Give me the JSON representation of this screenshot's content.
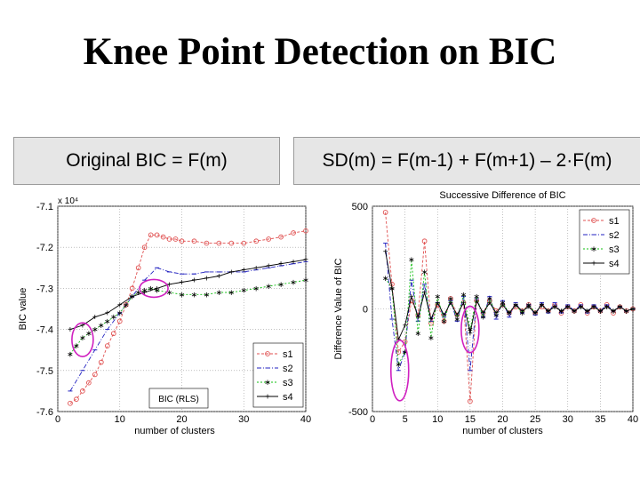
{
  "slide": {
    "title": "Knee Point Detection on BIC",
    "left_caption": "Original BIC = F(m)",
    "right_caption": "SD(m) = F(m-1) + F(m+1) – 2·F(m)"
  },
  "colors": {
    "s1": "#e05050",
    "s2": "#2020c0",
    "s3": "#10c010",
    "s4": "#000000",
    "highlight": "#d020c0"
  },
  "chart_data": [
    {
      "type": "line",
      "title": "",
      "xlabel": "number of clusters",
      "ylabel": "BIC value",
      "exponent_label": "x 10⁴",
      "xlim": [
        0,
        40
      ],
      "ylim": [
        -7.6,
        -7.1
      ],
      "xticks": [
        0,
        10,
        20,
        30,
        40
      ],
      "yticks": [
        -7.6,
        -7.5,
        -7.4,
        -7.3,
        -7.2,
        -7.1
      ],
      "legend_title": "BIC (RLS)",
      "legend": [
        "s1",
        "s2",
        "s3",
        "s4"
      ],
      "annotations": [
        "circle around s3 knee near m = 4",
        "circle around s3 knee near m = 15"
      ],
      "series": [
        {
          "name": "s1",
          "x": [
            2,
            3,
            4,
            5,
            6,
            7,
            8,
            9,
            10,
            11,
            12,
            13,
            14,
            15,
            16,
            17,
            18,
            19,
            20,
            22,
            24,
            26,
            28,
            30,
            32,
            34,
            36,
            38,
            40
          ],
          "values": [
            -7.58,
            -7.57,
            -7.55,
            -7.53,
            -7.51,
            -7.48,
            -7.44,
            -7.41,
            -7.38,
            -7.34,
            -7.3,
            -7.25,
            -7.2,
            -7.17,
            -7.17,
            -7.175,
            -7.18,
            -7.18,
            -7.185,
            -7.185,
            -7.19,
            -7.19,
            -7.19,
            -7.19,
            -7.185,
            -7.18,
            -7.175,
            -7.165,
            -7.16
          ]
        },
        {
          "name": "s2",
          "x": [
            2,
            4,
            6,
            8,
            10,
            12,
            14,
            16,
            18,
            20,
            22,
            24,
            26,
            28,
            30,
            32,
            34,
            36,
            38,
            40
          ],
          "values": [
            -7.55,
            -7.5,
            -7.45,
            -7.4,
            -7.36,
            -7.32,
            -7.28,
            -7.25,
            -7.26,
            -7.265,
            -7.265,
            -7.26,
            -7.26,
            -7.26,
            -7.26,
            -7.255,
            -7.25,
            -7.245,
            -7.24,
            -7.235
          ]
        },
        {
          "name": "s3",
          "x": [
            2,
            3,
            4,
            5,
            6,
            7,
            8,
            9,
            10,
            11,
            12,
            13,
            14,
            15,
            16,
            18,
            20,
            22,
            24,
            26,
            28,
            30,
            32,
            34,
            36,
            38,
            40
          ],
          "values": [
            -7.46,
            -7.44,
            -7.42,
            -7.41,
            -7.4,
            -7.39,
            -7.38,
            -7.37,
            -7.36,
            -7.34,
            -7.32,
            -7.31,
            -7.305,
            -7.3,
            -7.305,
            -7.31,
            -7.315,
            -7.315,
            -7.315,
            -7.31,
            -7.31,
            -7.305,
            -7.3,
            -7.295,
            -7.29,
            -7.285,
            -7.28
          ]
        },
        {
          "name": "s4",
          "x": [
            2,
            4,
            6,
            8,
            10,
            12,
            14,
            16,
            18,
            20,
            22,
            24,
            26,
            28,
            30,
            32,
            34,
            36,
            38,
            40
          ],
          "values": [
            -7.4,
            -7.39,
            -7.37,
            -7.36,
            -7.34,
            -7.32,
            -7.31,
            -7.3,
            -7.29,
            -7.285,
            -7.28,
            -7.275,
            -7.27,
            -7.26,
            -7.255,
            -7.25,
            -7.245,
            -7.24,
            -7.235,
            -7.23
          ]
        }
      ]
    },
    {
      "type": "line",
      "title": "Successive Difference of BIC",
      "xlabel": "number of clusters",
      "ylabel": "Difference Value of BIC",
      "xlim": [
        0,
        40
      ],
      "ylim": [
        -500,
        500
      ],
      "xticks": [
        0,
        5,
        10,
        15,
        20,
        25,
        30,
        35,
        40
      ],
      "yticks": [
        -500,
        0,
        500
      ],
      "legend": [
        "s1",
        "s2",
        "s3",
        "s4"
      ],
      "annotations": [
        "circle around minimum near m = 4",
        "circle around minimum near m = 15"
      ],
      "series": [
        {
          "name": "s1",
          "x": [
            2,
            3,
            4,
            5,
            6,
            7,
            8,
            9,
            10,
            11,
            12,
            13,
            14,
            15,
            16,
            17,
            18,
            19,
            20,
            21,
            22,
            23,
            24,
            25,
            26,
            27,
            28,
            29,
            30,
            31,
            32,
            33,
            34,
            35,
            36,
            37,
            38,
            39,
            40
          ],
          "values": [
            470,
            120,
            -210,
            -160,
            40,
            -30,
            330,
            -70,
            20,
            -60,
            50,
            -30,
            30,
            -450,
            40,
            -20,
            40,
            -10,
            20,
            -20,
            10,
            -10,
            20,
            -20,
            10,
            -10,
            20,
            -20,
            10,
            -10,
            20,
            -20,
            10,
            -10,
            20,
            -20,
            10,
            -10,
            0
          ]
        },
        {
          "name": "s2",
          "x": [
            2,
            3,
            4,
            5,
            6,
            7,
            8,
            9,
            10,
            11,
            12,
            13,
            14,
            15,
            16,
            17,
            18,
            19,
            20,
            21,
            22,
            23,
            24,
            25,
            26,
            27,
            28,
            29,
            30,
            31,
            32,
            33,
            34,
            35,
            36,
            37,
            38,
            39,
            40
          ],
          "values": [
            320,
            -50,
            -300,
            -210,
            140,
            -60,
            120,
            -60,
            30,
            -40,
            40,
            -60,
            60,
            -300,
            50,
            -40,
            60,
            -50,
            40,
            -40,
            30,
            -20,
            20,
            -30,
            30,
            -20,
            30,
            -20,
            20,
            -10,
            20,
            -20,
            20,
            -10,
            20,
            -10,
            10,
            -10,
            0
          ]
        },
        {
          "name": "s3",
          "x": [
            2,
            3,
            4,
            5,
            6,
            7,
            8,
            9,
            10,
            11,
            12,
            13,
            14,
            15,
            16,
            17,
            18,
            19,
            20,
            21,
            22,
            23,
            24,
            25,
            26,
            27,
            28,
            29,
            30,
            31,
            32,
            33,
            34,
            35,
            36,
            37,
            38,
            39,
            40
          ],
          "values": [
            150,
            100,
            -270,
            -210,
            240,
            -120,
            180,
            -140,
            60,
            -60,
            50,
            -50,
            70,
            -100,
            60,
            -40,
            50,
            -30,
            30,
            -20,
            20,
            -20,
            20,
            -20,
            20,
            -10,
            10,
            -10,
            10,
            -10,
            10,
            -10,
            10,
            -10,
            10,
            -10,
            10,
            -10,
            0
          ]
        },
        {
          "name": "s4",
          "x": [
            2,
            3,
            4,
            5,
            6,
            7,
            8,
            9,
            10,
            11,
            12,
            13,
            14,
            15,
            16,
            17,
            18,
            19,
            20,
            21,
            22,
            23,
            24,
            25,
            26,
            27,
            28,
            29,
            30,
            31,
            32,
            33,
            34,
            35,
            36,
            37,
            38,
            39,
            40
          ],
          "values": [
            280,
            100,
            -150,
            -80,
            60,
            -40,
            80,
            -50,
            30,
            -30,
            30,
            -30,
            30,
            -120,
            40,
            -20,
            30,
            -20,
            20,
            -20,
            20,
            -10,
            10,
            -20,
            20,
            -10,
            10,
            -10,
            10,
            -10,
            10,
            -10,
            10,
            -10,
            10,
            -10,
            10,
            -10,
            0
          ]
        }
      ]
    }
  ]
}
